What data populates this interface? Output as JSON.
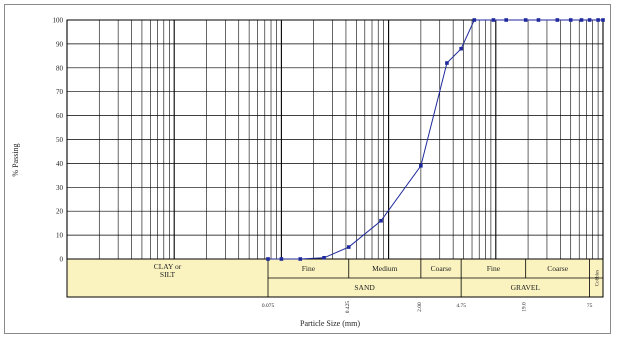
{
  "chart_data": {
    "type": "line",
    "title": "",
    "xlabel": "Particle Size (mm)",
    "ylabel": "% Passing",
    "x_scale": "log",
    "ylim": [
      0,
      100
    ],
    "y_ticks": [
      0,
      10,
      20,
      30,
      40,
      50,
      60,
      70,
      80,
      90,
      100
    ],
    "x_tick_labels": [
      {
        "label": "0.075",
        "value": 0.075
      },
      {
        "label": "0.425",
        "value": 0.425
      },
      {
        "label": "2.00",
        "value": 2.0
      },
      {
        "label": "4.75",
        "value": 4.75
      },
      {
        "label": "19.0",
        "value": 19.0
      },
      {
        "label": "75",
        "value": 75
      }
    ],
    "series": [
      {
        "color": "#1f2a9c",
        "x": [
          0.075,
          0.1,
          0.15,
          0.25,
          0.425,
          0.85,
          2.0,
          3.5,
          4.75,
          6.3,
          9.5,
          12.5,
          19.0,
          25.0,
          37.5,
          50.0,
          63.0,
          75.0,
          90.0,
          100.0
        ],
        "y": [
          0,
          0,
          0,
          0.5,
          5,
          16,
          39,
          82,
          88,
          100,
          100,
          100,
          100,
          100,
          100,
          100,
          100,
          100,
          100,
          100
        ]
      }
    ],
    "soil_bands": {
      "row1": [
        {
          "label": "CLAY or SILT"
        },
        {
          "label": "Fine"
        },
        {
          "label": "Medium"
        },
        {
          "label": "Coarse"
        },
        {
          "label": "Fine"
        },
        {
          "label": "Coarse"
        },
        {
          "label": "Cobbles"
        }
      ],
      "row2": [
        {
          "label": "SAND"
        },
        {
          "label": "GRAVEL"
        }
      ]
    }
  }
}
